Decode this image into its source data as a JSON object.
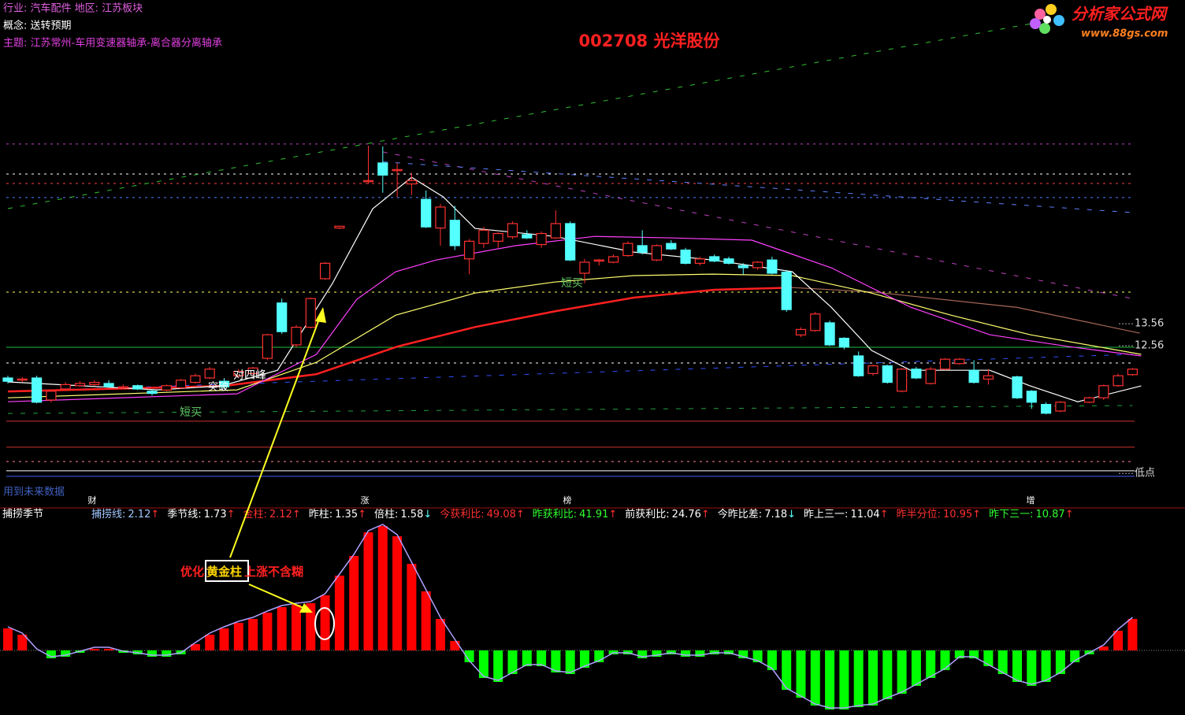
{
  "header": {
    "line1": "行业: 汽车配件  地区: 江苏板块",
    "line2": "概念: 送转预期",
    "line3": "主题: 江苏常州-车用变速器轴承-离合器分离轴承"
  },
  "logo": {
    "name": "分析家公式网",
    "url": "www.88gs.com"
  },
  "chart_data": [
    {
      "type": "candlestick",
      "title": "002708 光洋股份",
      "open": [
        11.1,
        11.0,
        11.1,
        10.1,
        10.6,
        10.75,
        10.8,
        10.85,
        10.65,
        10.75,
        10.5,
        10.55,
        10.65,
        10.9,
        11.1,
        10.95,
        11.2,
        11.3,
        11.99,
        14.5,
        12.6,
        13.4,
        15.6,
        17.9,
        null,
        20.0,
        20.85,
        20.5,
        19.9,
        19.2,
        17.9,
        18.25,
        16.5,
        17.2,
        17.3,
        17.5,
        17.6,
        17.15,
        17.45,
        18.1,
        15.85,
        16.4,
        16.35,
        16.65,
        17.1,
        16.45,
        17.2,
        16.9,
        16.3,
        16.6,
        16.5,
        16.2,
        16.1,
        16.45,
        15.9,
        13.05,
        13.25,
        13.6,
        12.9,
        12.1,
        11.3,
        11.65,
        10.5,
        11.5,
        10.85,
        11.5,
        11.75,
        11.45,
        11.05,
        null,
        11.15,
        10.5,
        9.9,
        9.6,
        null,
        10.0,
        10.2,
        10.75,
        11.25
      ],
      "high": [
        11.2,
        11.15,
        11.2,
        10.55,
        10.9,
        10.95,
        11.0,
        11.0,
        10.8,
        10.8,
        10.6,
        10.8,
        11.05,
        11.3,
        11.6,
        11.1,
        11.5,
        11.6,
        13.1,
        14.7,
        13.5,
        14.75,
        16.35,
        18.0,
        null,
        21.63,
        21.6,
        20.85,
        20.4,
        19.6,
        19.0,
        18.9,
        17.4,
        17.95,
        17.7,
        18.2,
        17.8,
        17.75,
        18.7,
        18.2,
        16.5,
        16.5,
        16.7,
        17.3,
        17.8,
        17.15,
        17.35,
        17.0,
        16.6,
        16.7,
        16.6,
        16.3,
        16.4,
        16.6,
        16.0,
        13.4,
        14.1,
        13.7,
        12.95,
        12.3,
        11.7,
        11.7,
        11.55,
        11.6,
        11.6,
        12.0,
        12.0,
        11.9,
        11.5,
        null,
        11.2,
        10.55,
        10.0,
        10.05,
        null,
        10.25,
        10.8,
        11.3,
        11.55
      ],
      "low": [
        10.85,
        10.9,
        9.95,
        10.0,
        10.55,
        10.7,
        10.75,
        10.65,
        10.6,
        10.55,
        10.3,
        10.5,
        10.6,
        10.85,
        11.05,
        10.6,
        11.1,
        11.2,
        11.9,
        13.1,
        12.5,
        13.35,
        15.55,
        17.85,
        null,
        19.9,
        19.5,
        19.3,
        19.4,
        17.9,
        17.1,
        16.9,
        15.8,
        17.0,
        17.0,
        17.4,
        17.4,
        17.0,
        17.4,
        16.4,
        15.4,
        16.2,
        16.3,
        16.6,
        16.7,
        16.4,
        16.9,
        16.25,
        16.2,
        16.35,
        16.25,
        15.8,
        16.0,
        15.8,
        14.1,
        12.95,
        13.2,
        12.55,
        12.4,
        11.15,
        11.2,
        10.85,
        10.45,
        11.05,
        10.8,
        11.45,
        11.7,
        10.85,
        10.8,
        null,
        10.15,
        9.7,
        9.45,
        9.55,
        null,
        9.95,
        10.1,
        10.7,
        11.2
      ],
      "close": [
        10.95,
        11.05,
        10.0,
        10.5,
        10.8,
        10.85,
        10.9,
        10.7,
        10.7,
        10.6,
        10.4,
        10.75,
        11.0,
        11.2,
        11.5,
        10.7,
        11.4,
        11.55,
        13.06,
        13.2,
        13.4,
        14.7,
        16.3,
        17.98,
        null,
        20.05,
        20.3,
        20.55,
        20.05,
        17.95,
        18.85,
        17.1,
        17.3,
        17.8,
        17.65,
        18.1,
        17.45,
        17.65,
        18.1,
        16.45,
        16.35,
        16.45,
        16.6,
        17.2,
        16.8,
        17.1,
        16.95,
        16.3,
        16.5,
        16.4,
        16.3,
        16.1,
        16.35,
        15.85,
        14.2,
        13.3,
        14.0,
        12.6,
        12.5,
        11.2,
        11.65,
        10.9,
        11.5,
        11.1,
        11.5,
        11.95,
        11.95,
        10.9,
        11.2,
        null,
        10.2,
        10.0,
        9.5,
        10.0,
        null,
        10.2,
        10.75,
        11.2,
        11.5
      ],
      "up_color": "#ff3030",
      "down_color": "#54ffff",
      "ylim": [
        6.1,
        28.24
      ],
      "yticks": [
        13.56,
        12.56,
        {
          "value": 6.77,
          "label": "低点"
        }
      ],
      "series": [
        {
          "color": "#ff2020",
          "x": [
            0,
            15,
            21.4,
            27,
            32.4,
            38,
            43.4,
            49,
            54.4
          ],
          "values": [
            10.49,
            10.74,
            11.27,
            12.52,
            13.41,
            14.13,
            14.74,
            15.1,
            15.2
          ]
        },
        {
          "color": "#a86858",
          "x": [
            54.4,
            60,
            70,
            78.5
          ],
          "values": [
            15.2,
            15.0,
            14.3,
            13.13
          ]
        },
        {
          "color": "#ffff70",
          "x": [
            0,
            15.9,
            21.4,
            26.9,
            32.4,
            37.9,
            43.4,
            48.9,
            54.4,
            59.9,
            65.4,
            70.9,
            78.6
          ],
          "values": [
            10.2,
            10.56,
            11.81,
            13.95,
            14.95,
            15.45,
            15.74,
            15.81,
            15.74,
            14.95,
            13.95,
            13.06,
            12.17
          ]
        },
        {
          "color": "#ff40ff",
          "x": [
            0,
            15.9,
            21.4,
            24.2,
            26.9,
            29.7,
            35.2,
            40.7,
            46.2,
            51.6,
            57.1,
            62.6,
            68.1,
            73.6,
            78.6
          ],
          "values": [
            10.02,
            10.38,
            12.17,
            14.67,
            15.92,
            16.45,
            17.1,
            17.52,
            17.45,
            17.35,
            16.1,
            14.31,
            13.06,
            12.52,
            12.1
          ]
        },
        {
          "color": "#ffffff",
          "x": [
            0,
            10.4,
            14.8,
            18.7,
            22.5,
            25.3,
            28,
            30.2,
            32.4,
            37.9,
            43.4,
            48.9,
            54.4,
            57.1,
            59.9,
            62.6,
            68.1,
            70.9,
            74.2,
            78.6
          ],
          "values": [
            10.92,
            10.56,
            10.74,
            11.45,
            15.38,
            18.77,
            20.2,
            19.31,
            17.88,
            17.52,
            16.81,
            16.45,
            15.92,
            14.31,
            12.35,
            11.45,
            11.45,
            10.74,
            10.02,
            10.74
          ]
        }
      ],
      "trend_lines": [
        {
          "color": "#30c030",
          "x": [
            0,
            71
          ],
          "values": [
            18.78,
            27.17
          ]
        },
        {
          "color": "#c040c0",
          "x": [
            26,
            78
          ],
          "values": [
            21.35,
            14.7
          ]
        },
        {
          "color": "#6080ff",
          "x": [
            26,
            78
          ],
          "values": [
            20.9,
            18.6
          ]
        },
        {
          "color": "#3050ff",
          "x": [
            0,
            78
          ],
          "values": [
            10.49,
            12.17
          ]
        },
        {
          "color": "#20a040",
          "x": [
            0,
            78
          ],
          "values": [
            9.49,
            9.85
          ]
        }
      ],
      "levels": [
        {
          "value": 21.71,
          "color": "#c040c0",
          "dashed": true
        },
        {
          "value": 20.35,
          "color": "#ffffff",
          "dashed": true
        },
        {
          "value": 19.92,
          "color": "#ff4040",
          "dashed": true
        },
        {
          "value": 19.28,
          "color": "#5080ff",
          "dashed": true
        },
        {
          "value": 14.99,
          "color": "#ffff60",
          "dashed": true
        },
        {
          "value": 12.49,
          "color": "#20c040",
          "dashed": false
        },
        {
          "value": 11.78,
          "color": "#ffffff",
          "dashed": true
        },
        {
          "value": 9.14,
          "color": "#d03030",
          "dashed": false
        },
        {
          "value": 7.96,
          "color": "#d03030",
          "dashed": false
        },
        {
          "value": 7.31,
          "color": "#ff8090",
          "dashed": true
        },
        {
          "value": 6.89,
          "color": "#ffffff",
          "dashed": false
        },
        {
          "value": 6.64,
          "color": "#4060ff",
          "dashed": false
        }
      ],
      "annotations": [
        "短买",
        "短买",
        "突破",
        "对四峰",
        "用到未来数据"
      ]
    },
    {
      "type": "bar",
      "title": "捕捞季节",
      "values": [
        28,
        20,
        0,
        -10,
        -8,
        -3,
        2,
        2,
        -3,
        -5,
        -8,
        -8,
        -5,
        8,
        20,
        28,
        35,
        40,
        48,
        55,
        58,
        60,
        70,
        95,
        120,
        150,
        158,
        145,
        110,
        75,
        40,
        12,
        -15,
        -35,
        -40,
        -30,
        -20,
        -20,
        -28,
        -30,
        -22,
        -15,
        -5,
        -5,
        -10,
        -8,
        -5,
        -8,
        -8,
        -5,
        -5,
        -10,
        -15,
        -25,
        -50,
        -60,
        -70,
        -75,
        -75,
        -72,
        -70,
        -62,
        -55,
        -45,
        -35,
        -25,
        -10,
        -10,
        -20,
        -30,
        -40,
        -45,
        -40,
        -30,
        -15,
        -5,
        5,
        25,
        40
      ],
      "pos_color": "#ff0000",
      "neg_color": "#00ff00",
      "ylim": [
        -82,
        176
      ],
      "items": [
        {
          "name": "捕捞线:",
          "value": 2.12,
          "arrow": "↑",
          "color": "#a0c8ff"
        },
        {
          "name": "季节线:",
          "value": 1.73,
          "arrow": "↑",
          "color": "#ffffff"
        },
        {
          "name": "金柱:",
          "value": 2.12,
          "arrow": "↑",
          "color": "#ff3030"
        },
        {
          "name": "昨柱:",
          "value": 1.35,
          "arrow": "↑",
          "color": "#ffffff"
        },
        {
          "name": "倍柱:",
          "value": 1.58,
          "arrow": "↓",
          "color": "#ffffff"
        },
        {
          "name": "今获利比:",
          "value": 49.08,
          "arrow": "↑",
          "color": "#ff3030"
        },
        {
          "name": "昨获利比:",
          "value": 41.91,
          "arrow": "↑",
          "color": "#30ff30"
        },
        {
          "name": "前获利比:",
          "value": 24.76,
          "arrow": "↑",
          "color": "#ffffff"
        },
        {
          "name": "今昨比差:",
          "value": 7.18,
          "arrow": "↓",
          "color": "#ffffff"
        },
        {
          "name": "昨上三一:",
          "value": 11.04,
          "arrow": "↑",
          "color": "#ffffff"
        },
        {
          "name": "昨半分位:",
          "value": 10.95,
          "arrow": "↑",
          "color": "#ff3030"
        },
        {
          "name": "昨下三一:",
          "value": 10.87,
          "arrow": "↑",
          "color": "#30ff30"
        }
      ],
      "signals": [
        "财",
        "涨",
        "榜",
        "增"
      ],
      "callout": {
        "before": "优化",
        "boxed": "黄金柱",
        "after": "上涨不含糊"
      }
    }
  ]
}
